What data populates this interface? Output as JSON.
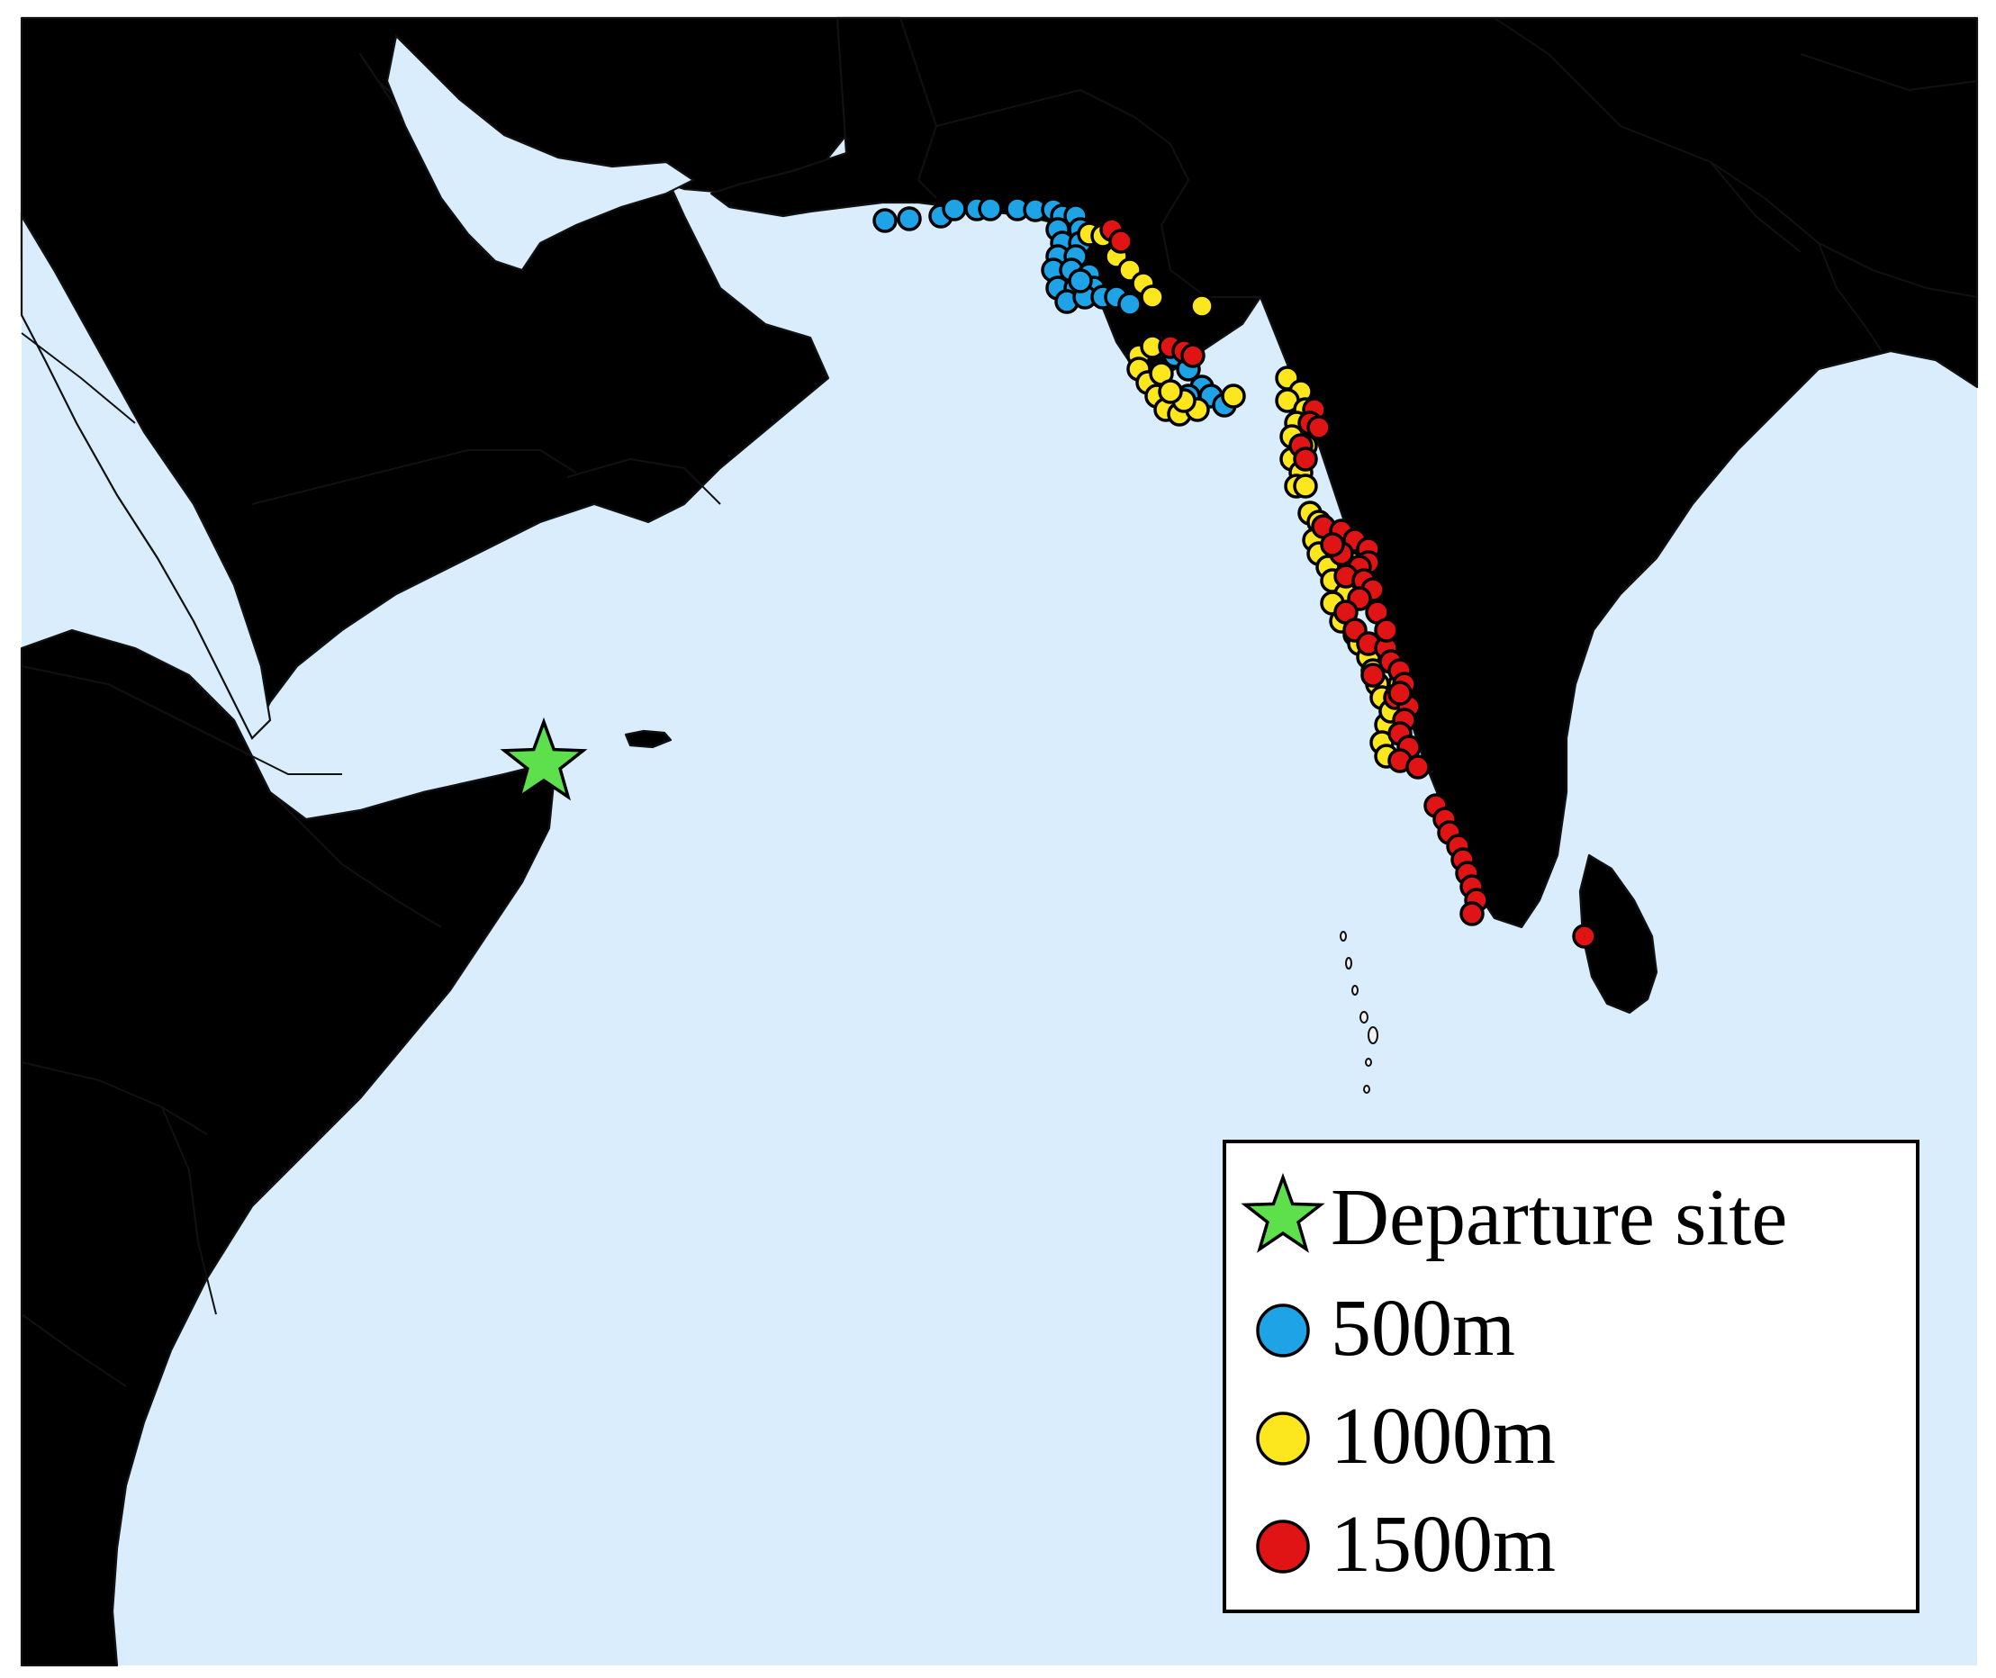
{
  "colors": {
    "ocean": "#d9edfc",
    "land": "#f2f2f2",
    "coast": "#111111",
    "star": "#5de04b",
    "m500": "#1ea3e6",
    "m1000": "#fce61e",
    "m1500": "#e01414"
  },
  "legend": {
    "departure": "Departure site",
    "m500": "500m",
    "m1000": "1000m",
    "m1500": "1500m"
  },
  "icons": {
    "departure": "green-star-icon",
    "m500": "blue-circle-icon",
    "m1000": "yellow-circle-icon",
    "m1500": "red-circle-icon"
  }
}
